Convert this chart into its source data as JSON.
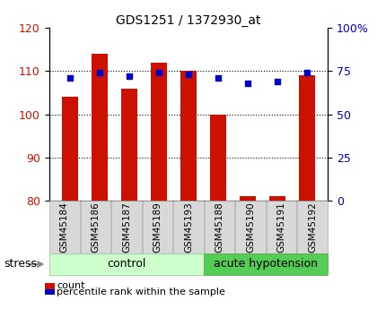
{
  "title": "GDS1251 / 1372930_at",
  "samples": [
    "GSM45184",
    "GSM45186",
    "GSM45187",
    "GSM45189",
    "GSM45193",
    "GSM45188",
    "GSM45190",
    "GSM45191",
    "GSM45192"
  ],
  "count_values": [
    104,
    114,
    106,
    112,
    110,
    100,
    81,
    81,
    109
  ],
  "percentile_values": [
    71,
    74,
    72,
    74,
    73,
    71,
    68,
    69,
    74
  ],
  "groups": [
    {
      "label": "control",
      "start": 0,
      "end": 5,
      "color": "#ccffcc",
      "edge": "#88cc88"
    },
    {
      "label": "acute hypotension",
      "start": 5,
      "end": 9,
      "color": "#55cc55",
      "edge": "#44aa44"
    }
  ],
  "stress_label": "stress",
  "bar_color": "#cc1100",
  "dot_color": "#0000cc",
  "ylim_left": [
    80,
    120
  ],
  "ylim_right": [
    0,
    100
  ],
  "yticks_left": [
    80,
    90,
    100,
    110,
    120
  ],
  "yticks_right": [
    0,
    25,
    50,
    75,
    100
  ],
  "ytick_right_labels": [
    "0",
    "25",
    "50",
    "75",
    "100%"
  ],
  "grid_color": "black",
  "bar_width": 0.55,
  "background_color": "#ffffff",
  "tick_label_color_left": "#cc1100",
  "tick_label_color_right": "#0000cc",
  "legend_items": [
    {
      "label": "count",
      "color": "#cc1100"
    },
    {
      "label": "percentile rank within the sample",
      "color": "#0000cc"
    }
  ]
}
